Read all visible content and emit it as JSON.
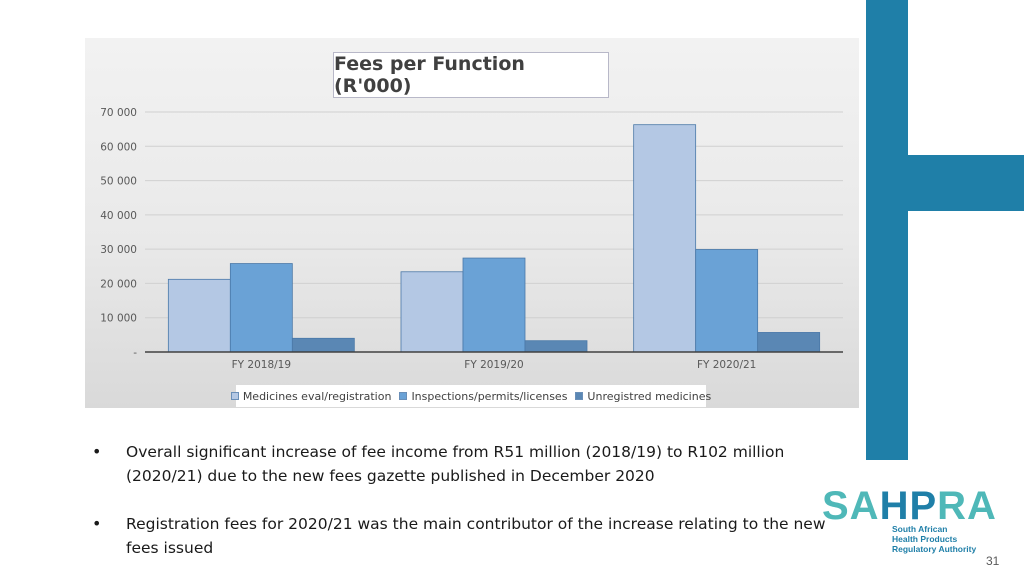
{
  "chart_data": {
    "type": "bar",
    "title": "Fees per Function (R'000)",
    "categories": [
      "FY 2018/19",
      "FY 2019/20",
      "FY 2020/21"
    ],
    "series": [
      {
        "name": "Medicines eval/registration",
        "values": [
          21200,
          23400,
          66300
        ],
        "color": "#b4c8e4"
      },
      {
        "name": "Inspections/permits/licenses",
        "values": [
          25800,
          27400,
          29900
        ],
        "color": "#6aa2d6"
      },
      {
        "name": "Unregistred medicines",
        "values": [
          4000,
          3300,
          5700
        ],
        "color": "#5a87b4"
      }
    ],
    "ylim": [
      0,
      70000
    ],
    "yticks": [
      0,
      10000,
      20000,
      30000,
      40000,
      50000,
      60000,
      70000
    ],
    "ytick_labels": [
      "-",
      "10 000",
      "20 000",
      "30 000",
      "40 000",
      "50 000",
      "60 000",
      "70 000"
    ],
    "xlabel": "",
    "ylabel": "",
    "grid": true,
    "legend_position": "bottom"
  },
  "bullets": [
    "Overall significant increase of fee income from R51 million (2018/19) to R102 million (2020/21) due to the new fees gazette published in December 2020",
    "Registration fees for 2020/21 was the main contributor of the increase relating to the new fees issued"
  ],
  "bullet_symbol": "•",
  "logo": {
    "part1": "SA",
    "part2": "HP",
    "part3": "RA",
    "subtitle_line1": "South African",
    "subtitle_line2": "Health Products",
    "subtitle_line3": "Regulatory Authority"
  },
  "page_number": "31",
  "colors": {
    "brand_blue": "#1f7fa8",
    "brand_teal": "#4fb8b8"
  }
}
